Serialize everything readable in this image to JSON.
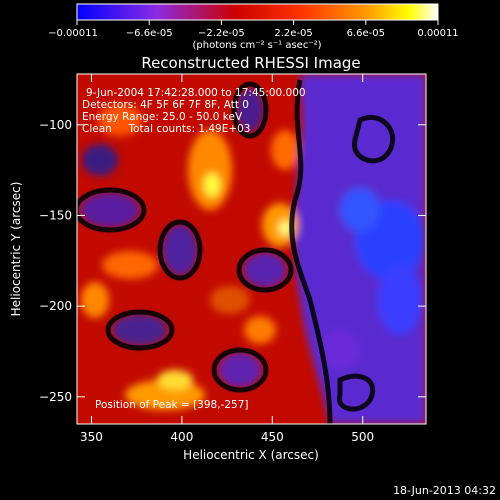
{
  "chart_data": {
    "type": "heatmap",
    "title": "Reconstructed RHESSI Image",
    "xlabel": "Heliocentric X (arcsec)",
    "ylabel": "Heliocentric Y (arcsec)",
    "xlim": [
      342,
      535
    ],
    "ylim": [
      -265,
      -72
    ],
    "xticks": [
      350,
      400,
      450,
      500
    ],
    "yticks": [
      -100,
      -150,
      -200,
      -250
    ],
    "colorbar": {
      "min": -0.00011,
      "max": 0.00011,
      "ticks": [
        "-0.00011",
        "-6.6e-05",
        "-2.2e-05",
        "2.2e-05",
        "6.6e-05",
        "0.00011"
      ],
      "units_label": "(photons cm⁻² s⁻¹ asec⁻²)",
      "colors": [
        "#0000ff",
        "#8a2be2",
        "#ff0000",
        "#ff8c00",
        "#ffff00",
        "#ffffff"
      ]
    },
    "annotations": [
      "9-Jun-2004 17:42:28.000 to 17:45:00.000",
      "Detectors: 4F 5F 6F 7F 8F, Att 0",
      "Energy Range: 25.0 - 50.0 keV",
      "Clean     Total counts: 1.49E+03"
    ],
    "peak_label": "Position of Peak = [398,-257]",
    "peak_position": [
      398,
      -257
    ],
    "timestamp": "18-Jun-2013 04:32"
  }
}
